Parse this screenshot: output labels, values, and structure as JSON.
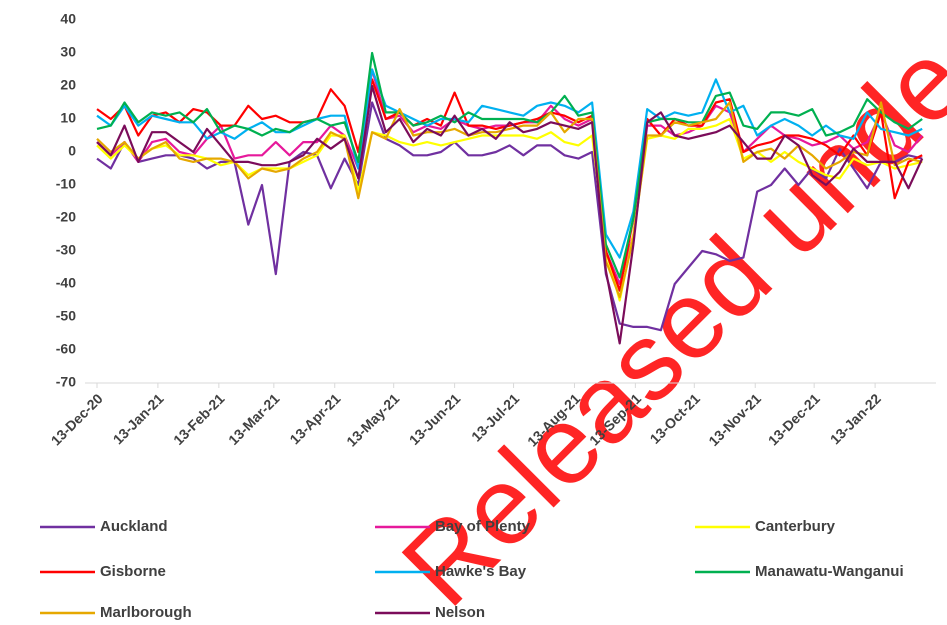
{
  "chart_data": {
    "type": "line",
    "x": [
      "2020-12-13",
      "2020-12-20",
      "2020-12-27",
      "2021-01-03",
      "2021-01-10",
      "2021-01-17",
      "2021-01-24",
      "2021-01-31",
      "2021-02-07",
      "2021-02-14",
      "2021-02-21",
      "2021-02-28",
      "2021-03-07",
      "2021-03-14",
      "2021-03-21",
      "2021-03-28",
      "2021-04-04",
      "2021-04-11",
      "2021-04-18",
      "2021-04-25",
      "2021-05-02",
      "2021-05-09",
      "2021-05-16",
      "2021-05-23",
      "2021-05-30",
      "2021-06-06",
      "2021-06-13",
      "2021-06-20",
      "2021-06-27",
      "2021-07-04",
      "2021-07-11",
      "2021-07-18",
      "2021-07-25",
      "2021-08-01",
      "2021-08-08",
      "2021-08-15",
      "2021-08-22",
      "2021-08-29",
      "2021-09-05",
      "2021-09-12",
      "2021-09-19",
      "2021-09-26",
      "2021-10-03",
      "2021-10-10",
      "2021-10-17",
      "2021-10-24",
      "2021-10-31",
      "2021-11-07",
      "2021-11-14",
      "2021-11-21",
      "2021-11-28",
      "2021-12-05",
      "2021-12-12",
      "2021-12-19",
      "2021-12-26",
      "2022-01-02",
      "2022-01-09",
      "2022-01-16",
      "2022-01-23",
      "2022-01-30",
      "2022-02-06"
    ],
    "xlim": [
      "2020-12-13",
      "2022-02-13"
    ],
    "xticks": [
      {
        "value": "2020-12-13",
        "label": "13-Dec-20"
      },
      {
        "value": "2021-01-13",
        "label": "13-Jan-21"
      },
      {
        "value": "2021-02-13",
        "label": "13-Feb-21"
      },
      {
        "value": "2021-03-13",
        "label": "13-Mar-21"
      },
      {
        "value": "2021-04-13",
        "label": "13-Apr-21"
      },
      {
        "value": "2021-05-13",
        "label": "13-May-21"
      },
      {
        "value": "2021-06-13",
        "label": "13-Jun-21"
      },
      {
        "value": "2021-07-13",
        "label": "13-Jul-21"
      },
      {
        "value": "2021-08-13",
        "label": "13-Aug-21"
      },
      {
        "value": "2021-09-13",
        "label": "13-Sep-21"
      },
      {
        "value": "2021-10-13",
        "label": "13-Oct-21"
      },
      {
        "value": "2021-11-13",
        "label": "13-Nov-21"
      },
      {
        "value": "2021-12-13",
        "label": "13-Dec-21"
      },
      {
        "value": "2022-01-13",
        "label": "13-Jan-22"
      }
    ],
    "ylim": [
      -70,
      40
    ],
    "yticks": [
      40,
      30,
      20,
      10,
      0,
      -10,
      -20,
      -30,
      -40,
      -50,
      -60,
      -70
    ],
    "grid": false,
    "legend": "bottom",
    "watermark": "Released unde",
    "series": [
      {
        "name": "Auckland",
        "color": "#7030a0",
        "values": [
          -2,
          -5,
          3,
          -3,
          -2,
          -1,
          -1,
          -2,
          -5,
          -3,
          -3,
          -22,
          -10,
          -37,
          -3,
          0,
          -1,
          -11,
          -2,
          -10,
          15,
          4,
          2,
          -1,
          -1,
          0,
          3,
          -1,
          -1,
          0,
          2,
          -1,
          2,
          2,
          -1,
          -2,
          0,
          -37,
          -52,
          -53,
          -53,
          -54,
          -40,
          -35,
          -30,
          -31,
          -33,
          -32,
          -12,
          -10,
          -5,
          -10,
          -5,
          -8,
          1,
          -5,
          -11,
          -3,
          -3,
          -1,
          -2
        ]
      },
      {
        "name": "Bay of Plenty",
        "color": "#e6199b",
        "values": [
          3,
          -1,
          3,
          -3,
          3,
          4,
          0,
          -1,
          4,
          8,
          -2,
          -1,
          -1,
          3,
          -1,
          3,
          3,
          8,
          5,
          -5,
          25,
          10,
          11,
          6,
          8,
          7,
          10,
          8,
          7,
          8,
          8,
          9,
          9,
          14,
          10,
          8,
          10,
          -30,
          -40,
          -25,
          8,
          8,
          5,
          6,
          8,
          14,
          12,
          0,
          4,
          8,
          5,
          4,
          2,
          3,
          5,
          1,
          3,
          12,
          2,
          0,
          5
        ]
      },
      {
        "name": "Canterbury",
        "color": "#ffff00",
        "values": [
          2,
          -2,
          2,
          -2,
          1,
          2,
          -1,
          -1,
          -2,
          -4,
          -3,
          -7,
          -5,
          -5,
          -5,
          -3,
          -1,
          5,
          5,
          -12,
          6,
          5,
          3,
          2,
          3,
          2,
          3,
          4,
          5,
          5,
          5,
          5,
          4,
          6,
          3,
          2,
          5,
          -30,
          -45,
          -25,
          4,
          5,
          4,
          7,
          7,
          8,
          10,
          -2,
          0,
          -3,
          0,
          -3,
          -5,
          -7,
          -8,
          -2,
          -4,
          -3,
          -5,
          -4,
          -3
        ]
      },
      {
        "name": "Gisborne",
        "color": "#ff0000",
        "values": [
          13,
          10,
          14,
          5,
          11,
          12,
          9,
          13,
          12,
          8,
          8,
          14,
          10,
          11,
          9,
          9,
          10,
          19,
          14,
          0,
          22,
          10,
          12,
          8,
          10,
          8,
          18,
          8,
          8,
          7,
          8,
          9,
          10,
          12,
          11,
          9,
          11,
          -30,
          -42,
          -20,
          10,
          5,
          10,
          8,
          8,
          15,
          16,
          0,
          2,
          3,
          5,
          5,
          4,
          2,
          -1,
          5,
          -1,
          12,
          -14,
          -3,
          -1
        ]
      },
      {
        "name": "Hawke's Bay",
        "color": "#00b0f0",
        "values": [
          11,
          8,
          14,
          8,
          11,
          10,
          9,
          9,
          4,
          6,
          4,
          7,
          9,
          6,
          6,
          8,
          10,
          11,
          11,
          -5,
          25,
          14,
          12,
          10,
          8,
          10,
          10,
          9,
          14,
          13,
          12,
          11,
          14,
          15,
          14,
          12,
          15,
          -25,
          -32,
          -18,
          13,
          10,
          12,
          11,
          12,
          22,
          12,
          14,
          5,
          8,
          10,
          8,
          5,
          8,
          5,
          4,
          12,
          7,
          6,
          5,
          7
        ]
      },
      {
        "name": "Manawatu-Wanganui",
        "color": "#00b050",
        "values": [
          7,
          8,
          15,
          9,
          12,
          11,
          12,
          9,
          13,
          6,
          8,
          7,
          5,
          7,
          6,
          9,
          10,
          8,
          9,
          -3,
          30,
          12,
          12,
          8,
          9,
          11,
          9,
          12,
          10,
          10,
          10,
          10,
          9,
          12,
          17,
          11,
          12,
          -28,
          -38,
          -20,
          9,
          10,
          10,
          9,
          9,
          17,
          18,
          8,
          7,
          12,
          12,
          11,
          13,
          5,
          6,
          8,
          16,
          12,
          9,
          7,
          10
        ]
      },
      {
        "name": "Marlborough",
        "color": "#e6a800",
        "values": [
          4,
          0,
          3,
          -2,
          1,
          3,
          -2,
          -3,
          -2,
          -2,
          -3,
          -8,
          -5,
          -6,
          -5,
          -2,
          0,
          6,
          4,
          -14,
          6,
          4,
          13,
          5,
          6,
          6,
          7,
          5,
          6,
          6,
          7,
          8,
          8,
          12,
          6,
          10,
          10,
          -33,
          -44,
          -26,
          5,
          5,
          9,
          8,
          9,
          10,
          15,
          -3,
          0,
          1,
          -2,
          2,
          -1,
          -5,
          -3,
          0,
          -1,
          15,
          -4,
          -2,
          -3
        ]
      },
      {
        "name": "Nelson",
        "color": "#7b0c5a",
        "values": [
          3,
          -1,
          8,
          -3,
          6,
          6,
          3,
          0,
          7,
          2,
          -3,
          -3,
          -4,
          -4,
          -3,
          -1,
          4,
          1,
          4,
          -8,
          20,
          6,
          10,
          3,
          7,
          5,
          11,
          5,
          7,
          4,
          9,
          6,
          7,
          9,
          8,
          7,
          9,
          -36,
          -58,
          -28,
          9,
          12,
          5,
          4,
          5,
          6,
          8,
          3,
          -2,
          -2,
          5,
          2,
          -7,
          -10,
          -6,
          1,
          -3,
          -3,
          -3,
          -11,
          -2
        ]
      }
    ]
  }
}
